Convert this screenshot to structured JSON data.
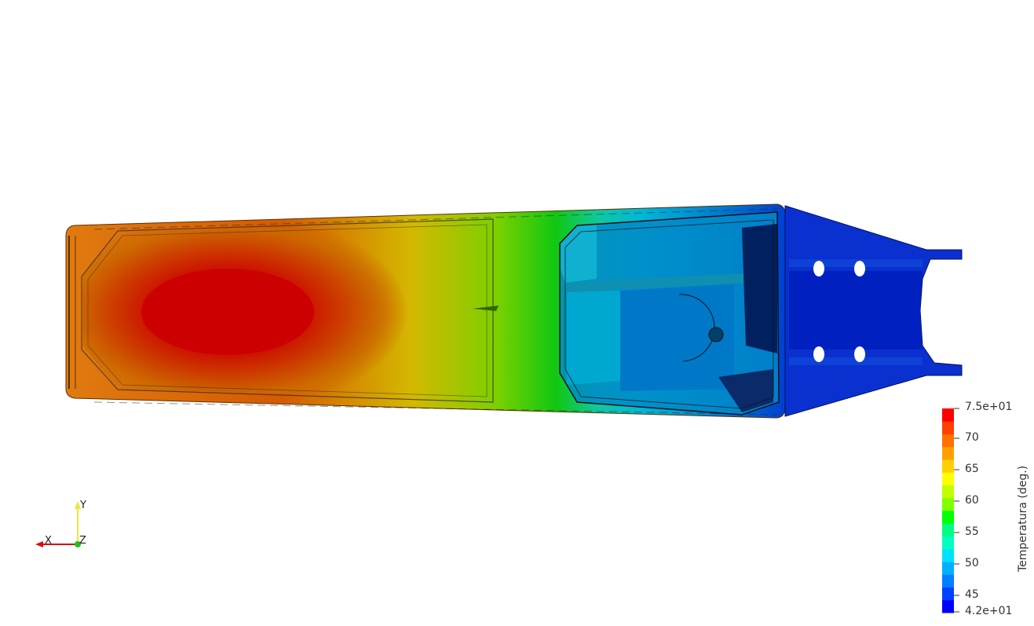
{
  "colorbar": {
    "title": "Temperatura (deg.)",
    "max_label": "7.5e+01",
    "min_label": "4.2e+01",
    "ticks": [
      "70",
      "65",
      "60",
      "55",
      "50",
      "45"
    ],
    "range": [
      42,
      75
    ],
    "colors": [
      "#0000ff",
      "#0040ff",
      "#0080ff",
      "#00b0ff",
      "#00e0ff",
      "#00ffc0",
      "#00ff80",
      "#00ff00",
      "#80ff00",
      "#c0ff00",
      "#ffff00",
      "#ffd000",
      "#ffa000",
      "#ff7000",
      "#ff4000",
      "#ff0000"
    ]
  },
  "axes": {
    "x_label": "X",
    "y_label": "Y",
    "z_label": "Z",
    "x_color": "#d01010",
    "y_color": "#e8e840",
    "z_color": "#20c020"
  }
}
